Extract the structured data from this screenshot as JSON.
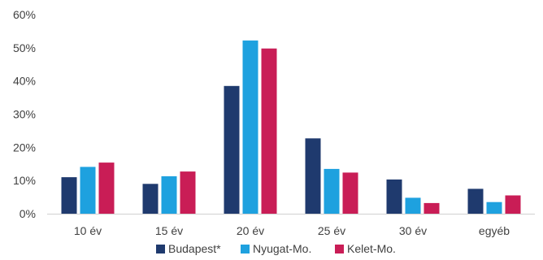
{
  "chart_data": {
    "type": "bar",
    "categories": [
      "10 év",
      "15 év",
      "20 év",
      "25 év",
      "30 év",
      "egyéb"
    ],
    "series": [
      {
        "name": "Budapest*",
        "color": "#1f3a6e",
        "values": [
          11,
          9,
          38.5,
          22.7,
          10.3,
          7.5
        ]
      },
      {
        "name": "Nyugat-Mo.",
        "color": "#1ea1df",
        "values": [
          14.1,
          11.3,
          52.2,
          13.5,
          4.8,
          3.5
        ]
      },
      {
        "name": "Kelet-Mo.",
        "color": "#c91d56",
        "values": [
          15.4,
          12.7,
          49.8,
          12.4,
          3.2,
          5.5
        ]
      }
    ],
    "yticks": [
      "0%",
      "10%",
      "20%",
      "30%",
      "40%",
      "50%",
      "60%"
    ],
    "ylim": [
      0,
      60
    ],
    "title": "",
    "xlabel": "",
    "ylabel": "",
    "legend_position": "bottom",
    "grid": false
  }
}
